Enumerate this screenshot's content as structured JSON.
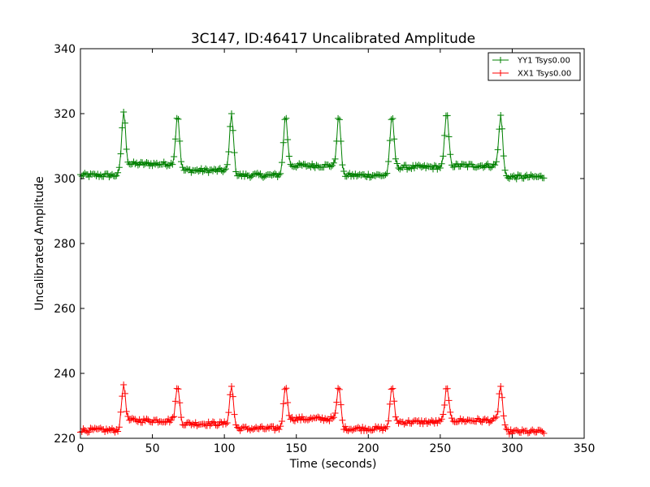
{
  "chart_data": {
    "type": "line",
    "title": "3C147, ID:46417 Uncalibrated Amplitude",
    "xlabel": "Time (seconds)",
    "ylabel": "Uncalibrated Amplitude",
    "xlim": [
      0,
      350
    ],
    "ylim": [
      220,
      340
    ],
    "xticks": [
      0,
      50,
      100,
      150,
      200,
      250,
      300,
      350
    ],
    "yticks": [
      220,
      240,
      260,
      280,
      300,
      320,
      340
    ],
    "grid": false,
    "legend_position": "top-right",
    "marker": "plus",
    "sample_interval_seconds": 1,
    "series": [
      {
        "name": "YY1 Tsys0.00",
        "color": "#008000",
        "x_range": [
          0,
          322
        ],
        "baseline_segments": [
          {
            "x": [
              0,
              26
            ],
            "level": 301
          },
          {
            "x": [
              34,
              64
            ],
            "level": 304.5
          },
          {
            "x": [
              71,
              101
            ],
            "level": 302.5
          },
          {
            "x": [
              109,
              138
            ],
            "level": 301
          },
          {
            "x": [
              146,
              175
            ],
            "level": 304
          },
          {
            "x": [
              183,
              212
            ],
            "level": 301
          },
          {
            "x": [
              220,
              250
            ],
            "level": 303.5
          },
          {
            "x": [
              258,
              288
            ],
            "level": 304
          },
          {
            "x": [
              296,
              322
            ],
            "level": 300.5
          }
        ],
        "peaks": [
          {
            "x": 30,
            "y": 320.5
          },
          {
            "x": 67.5,
            "y": 319.5
          },
          {
            "x": 105,
            "y": 320
          },
          {
            "x": 142.5,
            "y": 319.5
          },
          {
            "x": 179.5,
            "y": 319.5
          },
          {
            "x": 216.5,
            "y": 319.5
          },
          {
            "x": 254.5,
            "y": 320.5
          },
          {
            "x": 292,
            "y": 319.5
          }
        ]
      },
      {
        "name": "XX1 Tsys0.00",
        "color": "#ff0000",
        "x_range": [
          0,
          322
        ],
        "baseline_segments": [
          {
            "x": [
              0,
              26
            ],
            "level": 222.5
          },
          {
            "x": [
              34,
              64
            ],
            "level": 225.5
          },
          {
            "x": [
              71,
              101
            ],
            "level": 224.5
          },
          {
            "x": [
              109,
              138
            ],
            "level": 223
          },
          {
            "x": [
              146,
              175
            ],
            "level": 226
          },
          {
            "x": [
              183,
              212
            ],
            "level": 223
          },
          {
            "x": [
              220,
              250
            ],
            "level": 225
          },
          {
            "x": [
              258,
              288
            ],
            "level": 225.5
          },
          {
            "x": [
              296,
              322
            ],
            "level": 222
          }
        ],
        "peaks": [
          {
            "x": 30,
            "y": 236.5
          },
          {
            "x": 67.5,
            "y": 236
          },
          {
            "x": 105,
            "y": 236
          },
          {
            "x": 142.5,
            "y": 236
          },
          {
            "x": 179.5,
            "y": 236
          },
          {
            "x": 216.5,
            "y": 236
          },
          {
            "x": 254.5,
            "y": 236
          },
          {
            "x": 292,
            "y": 236
          }
        ]
      }
    ]
  }
}
